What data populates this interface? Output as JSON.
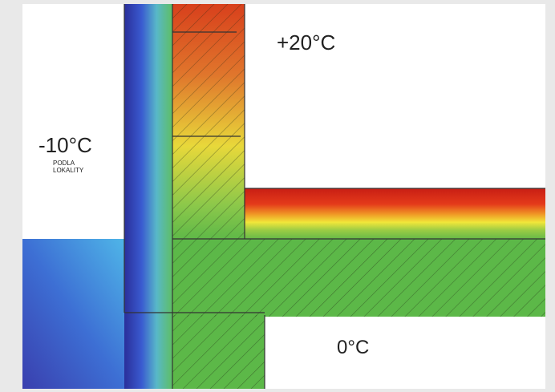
{
  "labels": {
    "interior": "+20°C",
    "exterior": "-10°C",
    "exterior_note": [
      "PODLA",
      "LOKALITY"
    ],
    "ground": "0°C"
  }
}
